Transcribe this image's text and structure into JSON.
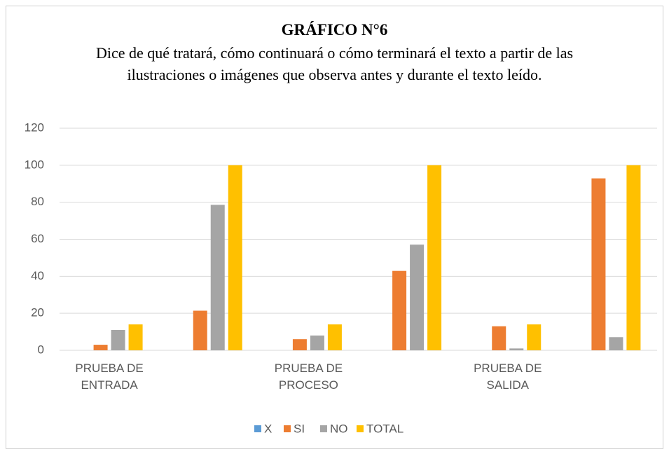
{
  "chart_data": {
    "type": "bar",
    "title": "GRÁFICO N°6",
    "subtitle": "Dice de qué tratará, cómo continuará o cómo terminará el texto a partir de las ilustraciones o imágenes que observa antes y durante el texto leído.",
    "categories": [
      "PRUEBA DE ENTRADA",
      null,
      "PRUEBA DE PROCESO",
      null,
      "PRUEBA DE SALIDA",
      null
    ],
    "series": [
      {
        "name": "X",
        "color": "#5b9bd5",
        "values": [
          null,
          null,
          null,
          null,
          null,
          null
        ]
      },
      {
        "name": "SI",
        "color": "#ed7d31",
        "values": [
          3,
          21.4,
          6,
          42.9,
          13,
          92.9
        ]
      },
      {
        "name": "NO",
        "color": "#a5a5a5",
        "values": [
          11,
          78.6,
          8,
          57.1,
          1,
          7.1
        ]
      },
      {
        "name": "TOTAL",
        "color": "#ffc000",
        "values": [
          14,
          100,
          14,
          100,
          14,
          100
        ]
      }
    ],
    "ylim": [
      0,
      120
    ],
    "yticks": [
      0,
      20,
      40,
      60,
      80,
      100,
      120
    ],
    "grid": true,
    "legend": "bottom"
  }
}
